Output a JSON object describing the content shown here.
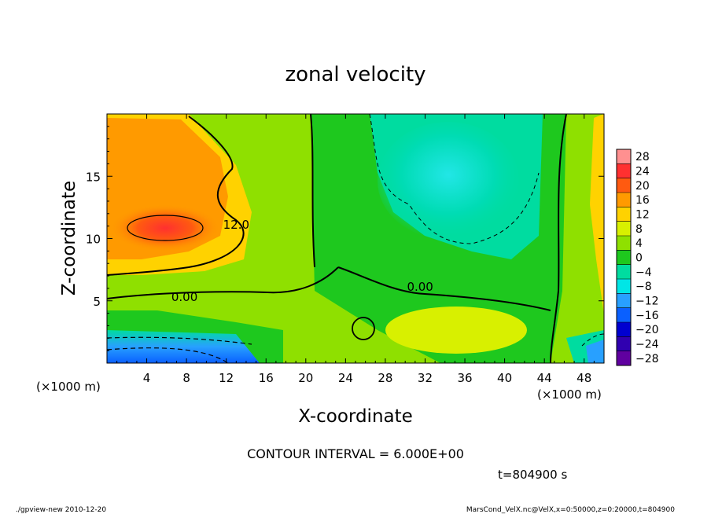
{
  "chart_data": {
    "type": "heatmap",
    "title": "zonal velocity",
    "xlabel": "X-coordinate",
    "ylabel": "Z-coordinate",
    "x_unit_left": "(×1000 m)",
    "x_unit_right": "(×1000 m)",
    "xlim": [
      0,
      50
    ],
    "ylim": [
      0,
      20
    ],
    "x_ticks": [
      4,
      8,
      12,
      16,
      20,
      24,
      28,
      32,
      36,
      40,
      44,
      48
    ],
    "y_ticks": [
      5,
      10,
      15
    ],
    "colorbar_levels": [
      28,
      24,
      20,
      16,
      12,
      8,
      4,
      0,
      -4,
      -8,
      -12,
      -16,
      -20,
      -24,
      -28
    ],
    "colorbar_label_texts": [
      "28",
      "24",
      "20",
      "16",
      "12",
      "8",
      "4",
      "0",
      "−4",
      "−8",
      "−12",
      "−16",
      "−20",
      "−24",
      "−28"
    ],
    "contour_interval_text": "CONTOUR INTERVAL = 6.000E+00",
    "time_text": "t=804900 s",
    "contour_labels": [
      {
        "text": "12.0",
        "x": 13.0,
        "z": 10.8
      },
      {
        "text": "0.00",
        "x": 7.8,
        "z": 5.0
      },
      {
        "text": "0.00",
        "x": 31.5,
        "z": 5.8
      }
    ],
    "footer_left": "./gpview-new   2010-12-20",
    "footer_right": "MarsCond_VelX.nc@VelX,x=0:50000,z=0:20000,t=804900"
  },
  "colors": {
    "colorbar": [
      "#ff9090",
      "#ff3030",
      "#ff5a10",
      "#ff9a00",
      "#ffd200",
      "#d8f000",
      "#8fe000",
      "#1ec81e",
      "#00dca0",
      "#00e6e6",
      "#28a0ff",
      "#0a60ff",
      "#0000d0",
      "#3000b0",
      "#6000a0"
    ]
  }
}
